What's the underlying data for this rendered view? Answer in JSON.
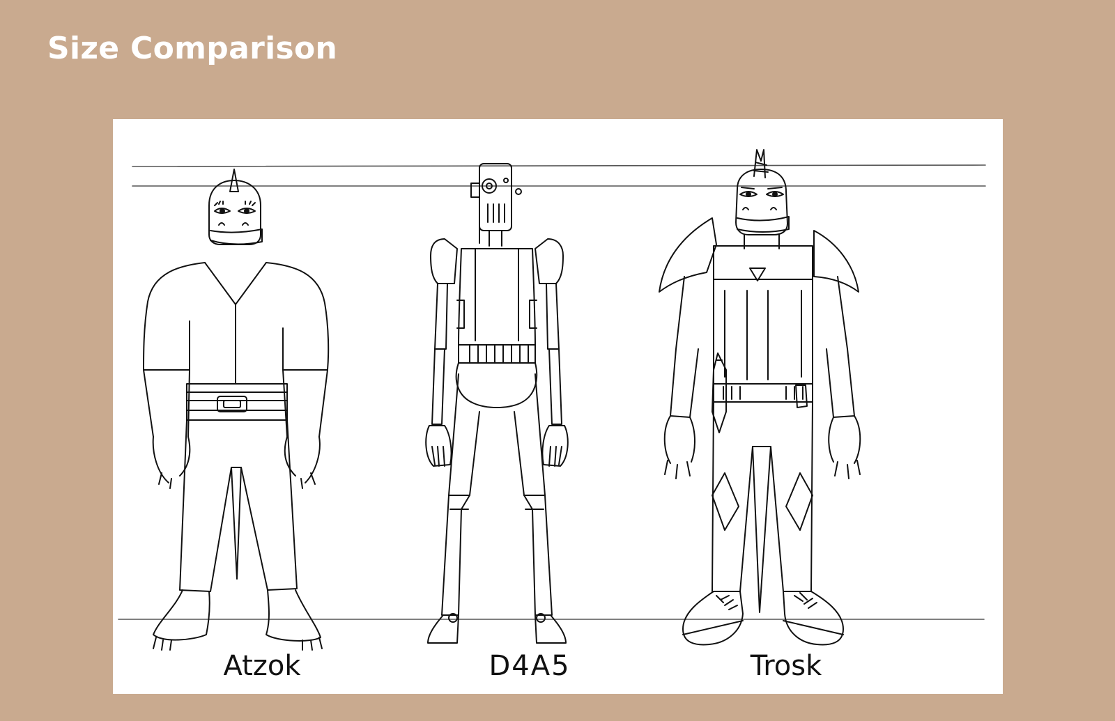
{
  "page": {
    "title": "Size Comparison"
  },
  "sheet": {
    "characters": [
      {
        "name": "Atzok"
      },
      {
        "name": "D4A5"
      },
      {
        "name": "Trosk"
      }
    ]
  },
  "colors": {
    "background": "#c9aa8f",
    "sheet": "#ffffff",
    "ink": "#111111",
    "title": "#ffffff"
  }
}
